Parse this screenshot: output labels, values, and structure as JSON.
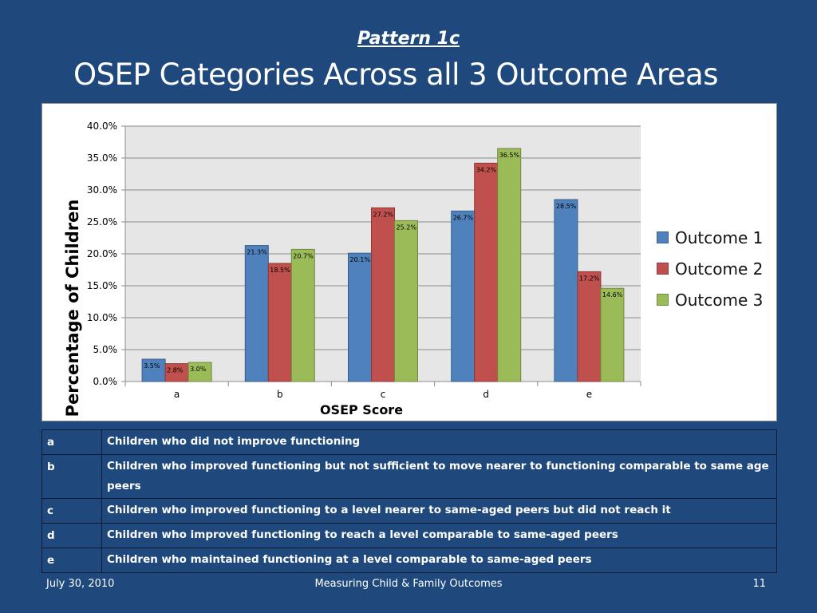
{
  "slide": {
    "subtitle": "Pattern 1c",
    "title": "OSEP Categories Across all 3 Outcome Areas"
  },
  "chart_data": {
    "type": "bar",
    "categories": [
      "a",
      "b",
      "c",
      "d",
      "e"
    ],
    "series": [
      {
        "name": "Outcome 1",
        "values": [
          3.5,
          21.3,
          20.1,
          26.7,
          28.5
        ],
        "labels": [
          "3.5%",
          "21.3%",
          "20.1%",
          "26.7%",
          "28.5%"
        ],
        "color": "#4f81bd",
        "border": "#385d8a"
      },
      {
        "name": "Outcome 2",
        "values": [
          2.8,
          18.5,
          27.2,
          34.2,
          17.2
        ],
        "labels": [
          "2.8%",
          "18.5%",
          "27.2%",
          "34.2%",
          "17.2%"
        ],
        "color": "#c0504d",
        "border": "#8c3836"
      },
      {
        "name": "Outcome 3",
        "values": [
          3.0,
          20.7,
          25.2,
          36.5,
          14.6
        ],
        "labels": [
          "3.0%",
          "20.7%",
          "25.2%",
          "36.5%",
          "14.6%"
        ],
        "color": "#9bbb59",
        "border": "#71893f"
      }
    ],
    "ylim": [
      0,
      40
    ],
    "yticks": [
      "0.0%",
      "5.0%",
      "10.0%",
      "15.0%",
      "20.0%",
      "25.0%",
      "30.0%",
      "35.0%",
      "40.0%"
    ],
    "ylabel": "Percentage of Children",
    "xlabel": "OSEP Score",
    "grid": true,
    "legend": "right",
    "plot_background": "#e6e6e6"
  },
  "definitions": [
    {
      "key": "a",
      "text": "Children who did not improve functioning"
    },
    {
      "key": "b",
      "text": "Children who improved functioning but not sufficient to move nearer to functioning comparable to same age peers"
    },
    {
      "key": "c",
      "text": "Children who improved functioning to a level nearer to same-aged peers but did not reach it"
    },
    {
      "key": "d",
      "text": "Children who improved functioning to reach a level comparable to same-aged peers"
    },
    {
      "key": "e",
      "text": "Children who maintained functioning at a level comparable to same-aged peers"
    }
  ],
  "footer": {
    "date": "July 30, 2010",
    "center": "Measuring Child & Family Outcomes",
    "page": "11"
  }
}
